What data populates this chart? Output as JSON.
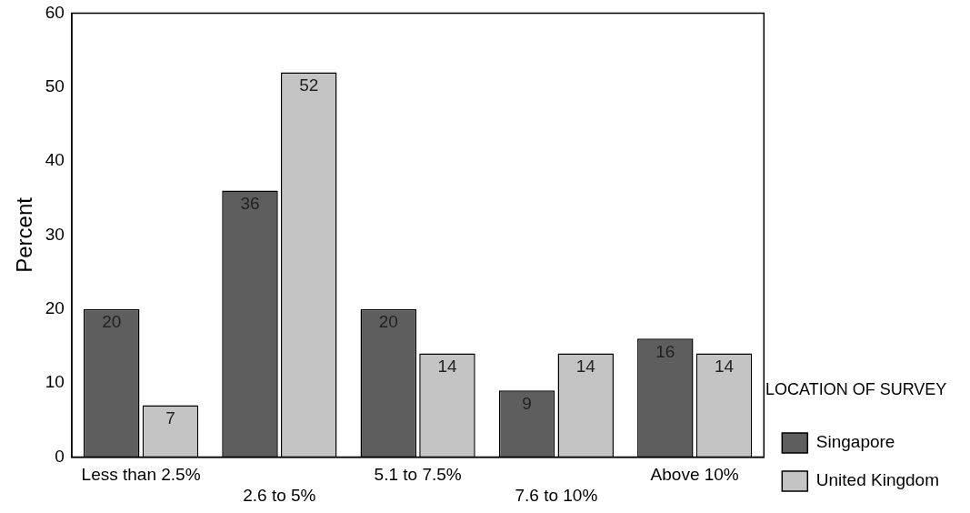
{
  "chart_data": {
    "type": "bar",
    "ylabel": "Percent",
    "legend_title": "LOCATION OF SURVEY",
    "categories": [
      "Less than 2.5%",
      "2.6 to 5%",
      "5.1 to 7.5%",
      "7.6 to 10%",
      "Above 10%"
    ],
    "series": [
      {
        "name": "Singapore",
        "color": "#5e5e5e",
        "values": [
          20,
          36,
          20,
          9,
          16
        ]
      },
      {
        "name": "United Kingdom",
        "color": "#c4c4c4",
        "values": [
          7,
          52,
          14,
          14,
          14
        ]
      }
    ],
    "ylim": [
      0,
      60
    ],
    "yticks": [
      0,
      10,
      20,
      30,
      40,
      50,
      60
    ],
    "grid": false,
    "legend": "right",
    "data_labels": true
  }
}
